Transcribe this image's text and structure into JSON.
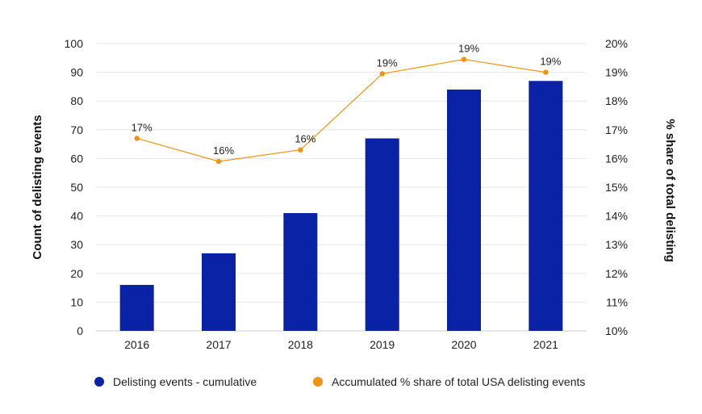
{
  "chart_data": {
    "type": "bar",
    "categories": [
      "2016",
      "2017",
      "2018",
      "2019",
      "2020",
      "2021"
    ],
    "series": [
      {
        "name": "Delisting events - cumulative",
        "kind": "bar",
        "axis": "left",
        "color": "#0a22a5",
        "values": [
          16,
          27,
          41,
          67,
          84,
          87
        ]
      },
      {
        "name": "Accumulated % share of total USA delisting events",
        "kind": "line",
        "axis": "right",
        "color": "#f0930e",
        "values": [
          16.7,
          15.9,
          16.3,
          18.95,
          19.45,
          19.0
        ],
        "labels": [
          "17%",
          "16%",
          "16%",
          "19%",
          "19%",
          "19%"
        ]
      }
    ],
    "ylabel": "Count of delisting events",
    "y2label": "% share of total delisting",
    "ylim": [
      0,
      100
    ],
    "y2lim": [
      10,
      20
    ],
    "yticks": [
      "0",
      "10",
      "20",
      "30",
      "40",
      "50",
      "60",
      "70",
      "80",
      "90",
      "100"
    ],
    "y2ticks": [
      "10%",
      "11%",
      "12%",
      "13%",
      "14%",
      "15%",
      "16%",
      "17%",
      "18%",
      "19%",
      "20%"
    ],
    "grid": true,
    "legend_position": "bottom"
  }
}
